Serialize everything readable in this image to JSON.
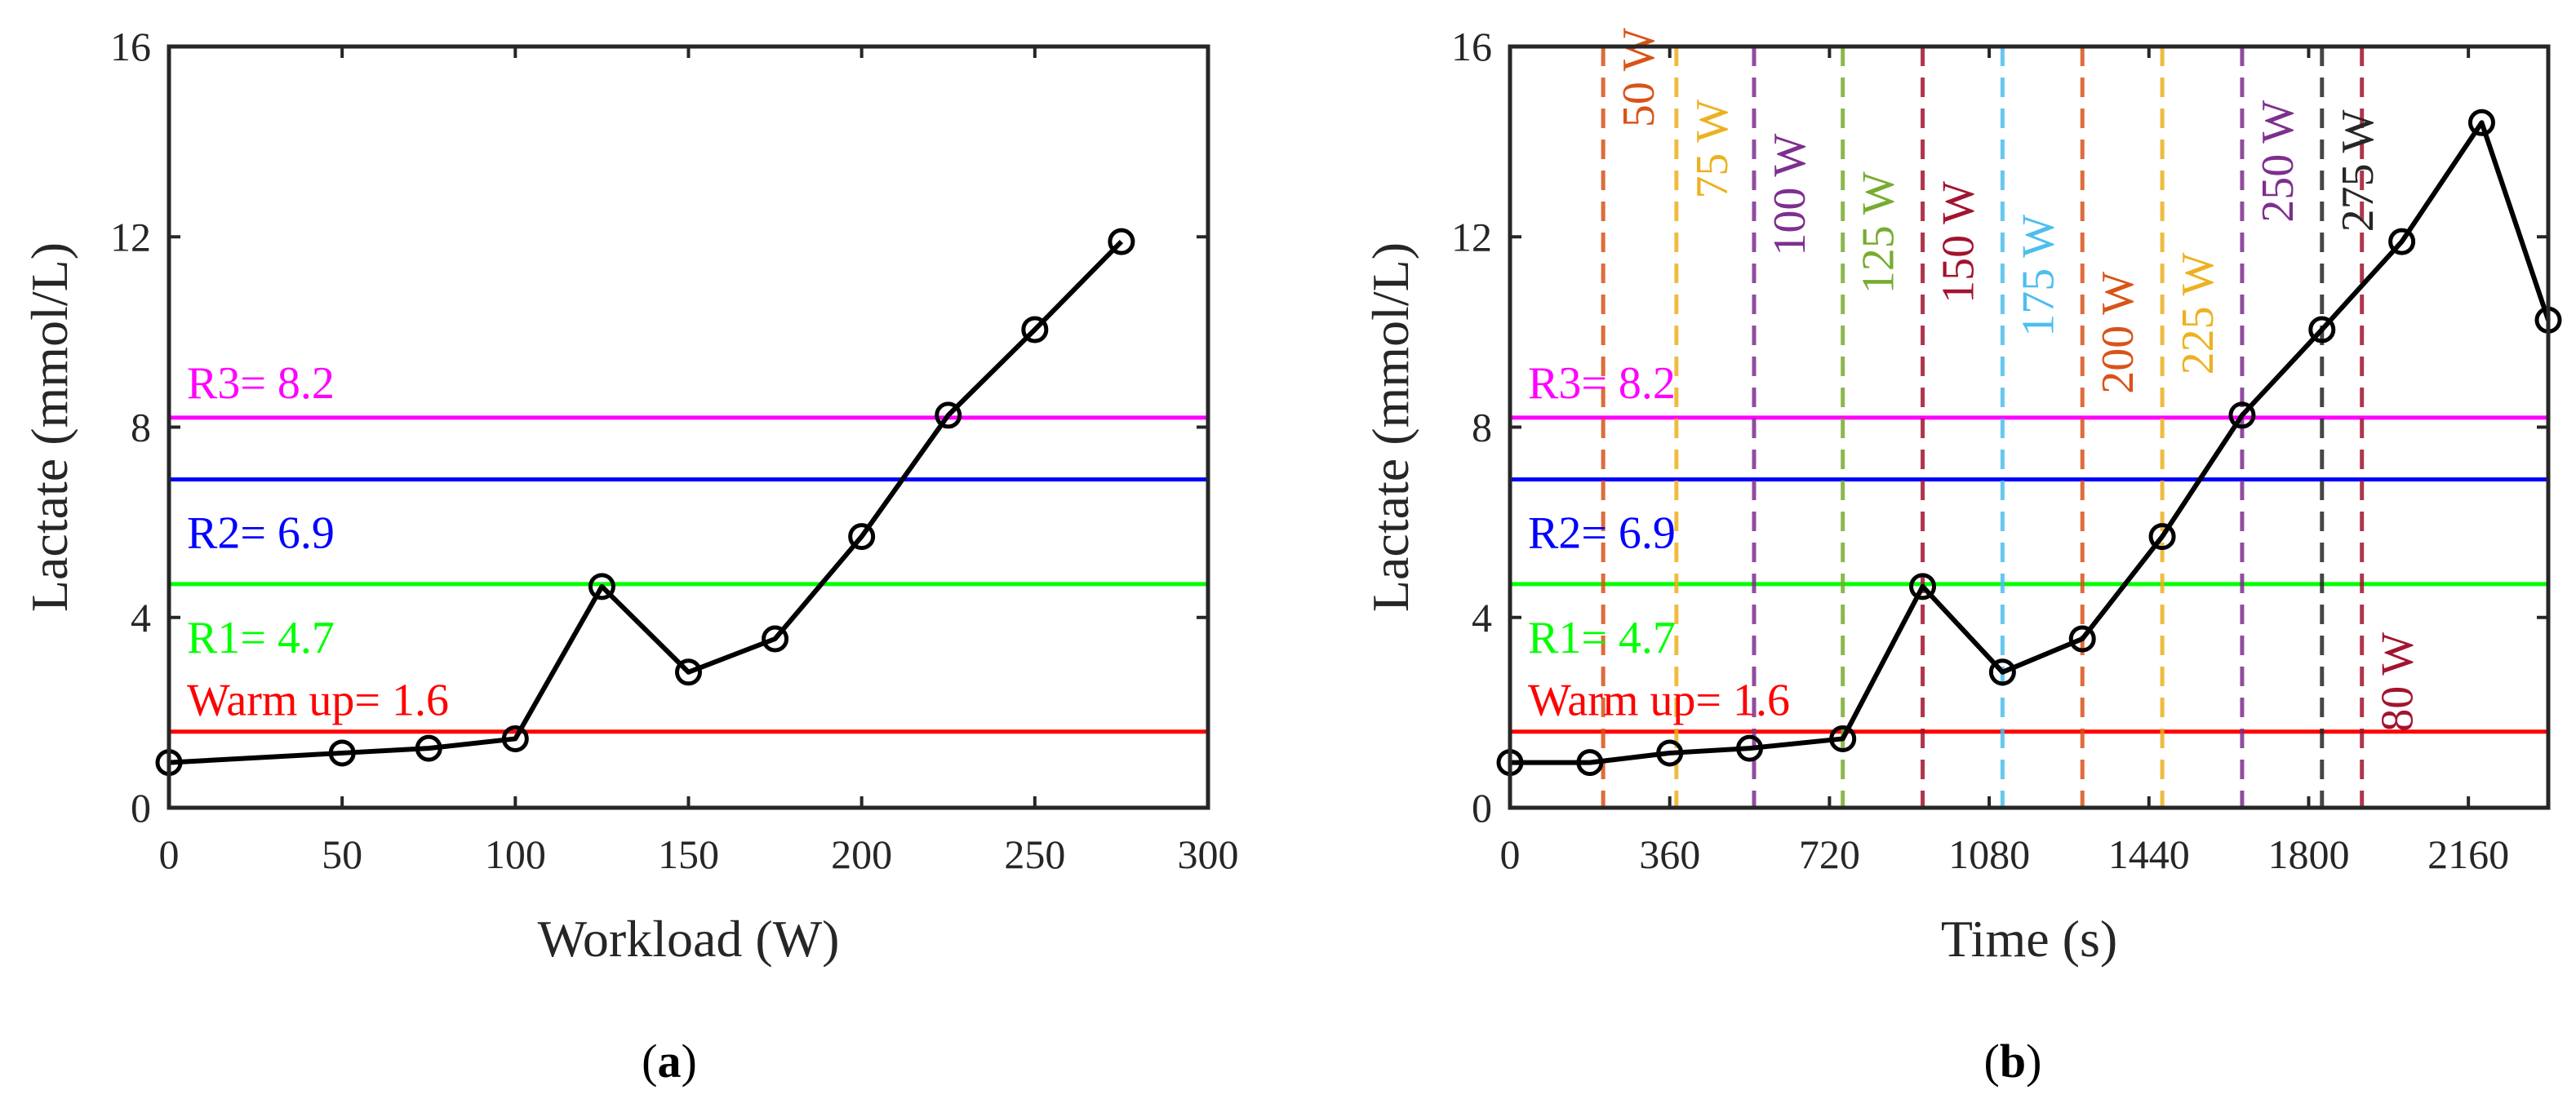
{
  "chart_data": [
    {
      "type": "line",
      "panel_label": "(a)",
      "panel_letter": "a",
      "xlabel": "Workload (W)",
      "ylabel": "Lactate (mmol/L)",
      "xlim": [
        0,
        300
      ],
      "ylim": [
        0,
        16
      ],
      "xticks": [
        0,
        50,
        100,
        150,
        200,
        250,
        300
      ],
      "yticks": [
        0,
        4,
        8,
        12,
        16
      ],
      "series": [
        {
          "name": "Lactate",
          "color": "#000000",
          "marker": "circle",
          "x": [
            0,
            50,
            75,
            100,
            125,
            150,
            175,
            200,
            225,
            250,
            275
          ],
          "y": [
            0.95,
            1.15,
            1.25,
            1.45,
            4.65,
            2.85,
            3.55,
            5.7,
            8.25,
            10.05,
            11.9
          ]
        }
      ],
      "reference_lines": [
        {
          "label": "R3= 8.2",
          "value": 8.2,
          "color": "#ff00ff"
        },
        {
          "label": "R2= 6.9",
          "value": 6.9,
          "color": "#0000ff"
        },
        {
          "label": "R1= 4.7",
          "value": 4.7,
          "color": "#00ff00"
        },
        {
          "label": "Warm up= 1.6",
          "value": 1.6,
          "color": "#ff0000"
        }
      ]
    },
    {
      "type": "line",
      "panel_label": "(b)",
      "panel_letter": "b",
      "xlabel": "Time (s)",
      "ylabel": "Lactate (mmol/L)",
      "xlim": [
        0,
        2340
      ],
      "ylim": [
        0,
        16
      ],
      "xticks": [
        0,
        360,
        720,
        1080,
        1440,
        1800,
        2160
      ],
      "yticks": [
        0,
        4,
        8,
        12,
        16
      ],
      "series": [
        {
          "name": "Lactate",
          "color": "#000000",
          "marker": "circle",
          "x": [
            0,
            180,
            360,
            540,
            750,
            930,
            1110,
            1290,
            1470,
            1650,
            1830,
            2010,
            2190,
            2340
          ],
          "y": [
            0.95,
            0.95,
            1.15,
            1.25,
            1.45,
            4.65,
            2.85,
            3.55,
            5.7,
            8.25,
            10.05,
            11.9,
            14.4,
            10.25
          ]
        }
      ],
      "reference_lines": [
        {
          "label": "R3= 8.2",
          "value": 8.2,
          "color": "#ff00ff"
        },
        {
          "label": "R2= 6.9",
          "value": 6.9,
          "color": "#0000ff"
        },
        {
          "label": "R1= 4.7",
          "value": 4.7,
          "color": "#00ff00"
        },
        {
          "label": "Warm up= 1.6",
          "value": 1.6,
          "color": "#ff0000"
        }
      ],
      "stage_markers": [
        {
          "time": 210,
          "label": "50 W",
          "color": "#d95319",
          "label_y": 14.3
        },
        {
          "time": 375,
          "label": "75 W",
          "color": "#edb120",
          "label_y": 12.8
        },
        {
          "time": 550,
          "label": "100 W",
          "color": "#7e2f8e",
          "label_y": 11.6
        },
        {
          "time": 750,
          "label": "125 W",
          "color": "#77ac30",
          "label_y": 10.8
        },
        {
          "time": 930,
          "label": "150 W",
          "color": "#a2142f",
          "label_y": 10.6
        },
        {
          "time": 1110,
          "label": "175 W",
          "color": "#4dbeee",
          "label_y": 9.9
        },
        {
          "time": 1290,
          "label": "200 W",
          "color": "#d95319",
          "label_y": 8.7
        },
        {
          "time": 1470,
          "label": "225 W",
          "color": "#edb120",
          "label_y": 9.1
        },
        {
          "time": 1650,
          "label": "250 W",
          "color": "#7e2f8e",
          "label_y": 12.3
        },
        {
          "time": 1830,
          "label": "275 W",
          "color": "#262626",
          "label_y": 12.1
        },
        {
          "time": 1920,
          "label": "80 W",
          "color": "#a2142f",
          "label_y": 1.6
        }
      ]
    }
  ]
}
